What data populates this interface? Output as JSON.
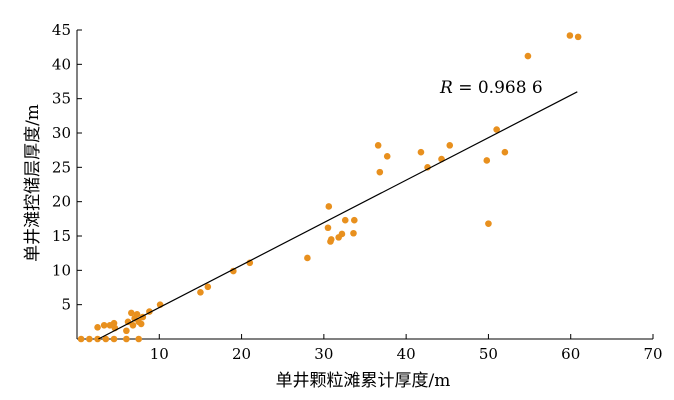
{
  "chart_data": {
    "type": "scatter",
    "title": "",
    "xlabel": "单井颗粒滩累计厚度/m",
    "ylabel": "单井滩控储层厚度/m",
    "xlim": [
      0,
      70
    ],
    "ylim": [
      0,
      45
    ],
    "xticks": [
      10,
      20,
      30,
      40,
      50,
      60,
      70
    ],
    "yticks": [
      5,
      10,
      15,
      20,
      25,
      30,
      35,
      40,
      45
    ],
    "grid": false,
    "point_color": "#e8901e",
    "line_color": "#000000",
    "annotation": {
      "symbol": "R",
      "text": " = 0.968 6",
      "position": "upper-right"
    },
    "trendline": {
      "x": [
        2.6,
        60.8
      ],
      "y": [
        0.0,
        36.0
      ]
    },
    "series": [
      {
        "points": [
          [
            0.5,
            0
          ],
          [
            1.5,
            0
          ],
          [
            2.5,
            0
          ],
          [
            3.5,
            0
          ],
          [
            4.5,
            0
          ],
          [
            6,
            0
          ],
          [
            7.5,
            0
          ],
          [
            2.5,
            1.7
          ],
          [
            3.3,
            2.0
          ],
          [
            4.0,
            2.0
          ],
          [
            4.5,
            2.3
          ],
          [
            4.6,
            1.6
          ],
          [
            6.0,
            1.2
          ],
          [
            6.2,
            2.5
          ],
          [
            6.6,
            3.8
          ],
          [
            6.8,
            2.0
          ],
          [
            7.0,
            3.0
          ],
          [
            7.3,
            3.6
          ],
          [
            7.5,
            2.5
          ],
          [
            7.8,
            2.2
          ],
          [
            8.0,
            3.2
          ],
          [
            8.8,
            4.0
          ],
          [
            10.1,
            5.0
          ],
          [
            15.0,
            6.8
          ],
          [
            15.9,
            7.6
          ],
          [
            19.0,
            9.9
          ],
          [
            21.0,
            11.1
          ],
          [
            28.0,
            11.8
          ],
          [
            30.5,
            16.2
          ],
          [
            30.6,
            19.3
          ],
          [
            30.8,
            14.2
          ],
          [
            30.9,
            14.5
          ],
          [
            31.8,
            14.8
          ],
          [
            32.2,
            15.3
          ],
          [
            32.6,
            17.3
          ],
          [
            33.6,
            15.4
          ],
          [
            33.7,
            17.3
          ],
          [
            36.6,
            28.2
          ],
          [
            36.8,
            24.3
          ],
          [
            37.7,
            26.6
          ],
          [
            41.8,
            27.2
          ],
          [
            42.6,
            25.0
          ],
          [
            44.3,
            26.2
          ],
          [
            45.3,
            28.2
          ],
          [
            49.8,
            26.0
          ],
          [
            50.0,
            16.8
          ],
          [
            51.0,
            30.5
          ],
          [
            52.0,
            27.2
          ],
          [
            54.8,
            41.2
          ],
          [
            59.9,
            44.2
          ],
          [
            60.9,
            44.0
          ]
        ]
      }
    ]
  }
}
